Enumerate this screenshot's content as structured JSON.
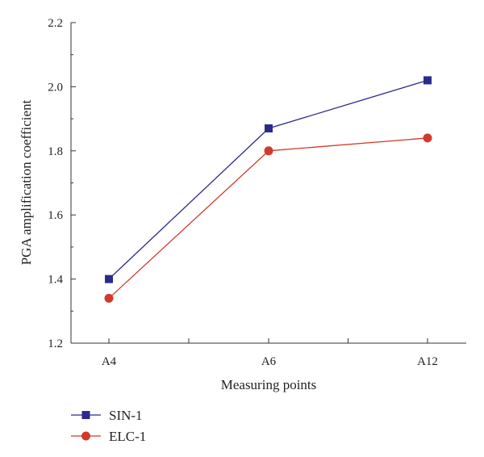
{
  "chart_data": {
    "type": "line",
    "title": "",
    "xlabel": "Measuring points",
    "ylabel": "PGA amplification coefficient",
    "categories": [
      "A4",
      "A6",
      "A12"
    ],
    "ylim": [
      1.2,
      2.2
    ],
    "yticks": [
      "1.2",
      "1.4",
      "1.6",
      "1.8",
      "2.0",
      "2.2"
    ],
    "grid": false,
    "legend_position": "bottom-left",
    "series": [
      {
        "name": "SIN-1",
        "values": [
          1.4,
          1.87,
          2.02
        ],
        "color": "#2b2a8c",
        "marker": "square"
      },
      {
        "name": "ELC-1",
        "values": [
          1.34,
          1.8,
          1.84
        ],
        "color": "#d13a2b",
        "marker": "circle"
      }
    ]
  }
}
